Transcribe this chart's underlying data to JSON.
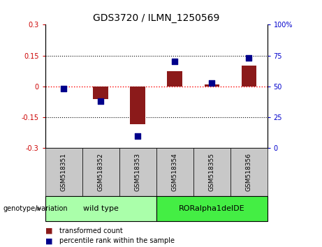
{
  "title": "GDS3720 / ILMN_1250569",
  "samples": [
    "GSM518351",
    "GSM518352",
    "GSM518353",
    "GSM518354",
    "GSM518355",
    "GSM518356"
  ],
  "transformed_count": [
    0.0,
    -0.06,
    -0.185,
    0.075,
    0.01,
    0.1
  ],
  "percentile_rank_raw": [
    48,
    38,
    10,
    70,
    53,
    73
  ],
  "ylim_left": [
    -0.3,
    0.3
  ],
  "ylim_right": [
    0,
    100
  ],
  "yticks_left": [
    -0.3,
    -0.15,
    0,
    0.15,
    0.3
  ],
  "yticks_right": [
    0,
    25,
    50,
    75,
    100
  ],
  "bar_color": "#8B1A1A",
  "dot_color": "#00008B",
  "background_xlabels": "#c8c8c8",
  "wild_type_label": "wild type",
  "ror_label": "RORalpha1delDE",
  "genotype_label": "genotype/variation",
  "legend_bar_label": "transformed count",
  "legend_dot_label": "percentile rank within the sample",
  "wild_type_color": "#aaffaa",
  "ror_color": "#44ee44",
  "left_tick_color": "#CC0000",
  "right_tick_color": "#0000CC",
  "bar_width": 0.4,
  "dot_size": 28
}
